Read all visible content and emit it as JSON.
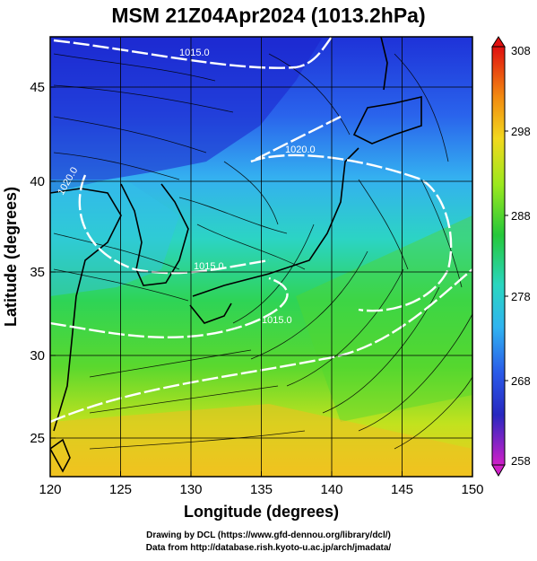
{
  "title": "MSM 21Z04Apr2024 (1013.2hPa)",
  "x_axis": {
    "label": "Longitude (degrees)",
    "ticks": [
      "120",
      "125",
      "130",
      "135",
      "140",
      "145",
      "150"
    ]
  },
  "y_axis": {
    "label": "Latitude  (degrees)",
    "ticks": [
      "25",
      "30",
      "35",
      "40",
      "45"
    ]
  },
  "colorbar": {
    "ticks": [
      "308",
      "298",
      "288",
      "278",
      "268",
      "258"
    ]
  },
  "isobar_labels": [
    "1015.0",
    "1020.0",
    "1020.0",
    "1015.0",
    "1015.0"
  ],
  "credits": {
    "line1": "Drawing by DCL (https://www.gfd-dennou.org/library/dcl/)",
    "line2": "Data from http://database.rish.kyoto-u.ac.jp/arch/jmadata/"
  },
  "map": {
    "lon_range": [
      120,
      150
    ],
    "lat_range": [
      22.4,
      47.6
    ],
    "temperature_range": [
      258,
      308
    ],
    "colors": {
      "very_cold": "#1c22d0",
      "cold": "#2f6df0",
      "cool": "#35b7f0",
      "mild": "#2dd6c0",
      "warm": "#2fd04a",
      "warmer": "#a8e81e",
      "hot": "#f2c81e",
      "land_outline": "#000000",
      "isobar": "#ffffff"
    }
  }
}
